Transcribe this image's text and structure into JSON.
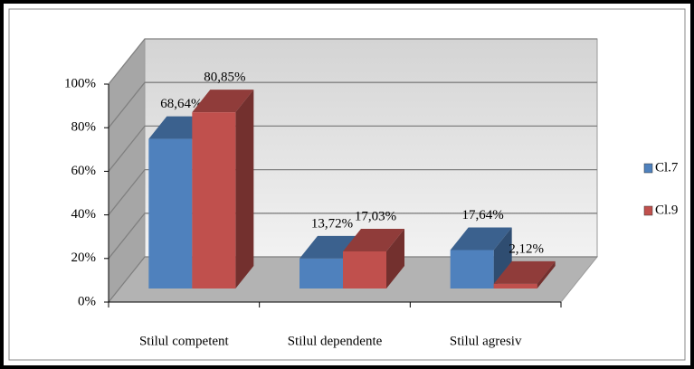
{
  "chart_data": {
    "type": "bar3d",
    "categories": [
      "Stilul competent",
      "Stilul dependente",
      "Stilul agresiv"
    ],
    "series": [
      {
        "name": "Cl.7",
        "color": "#4f81bd",
        "values": [
          68.64,
          13.72,
          17.64
        ],
        "value_labels": [
          "68,64%",
          "13,72%",
          "17,64%"
        ]
      },
      {
        "name": "Cl.9",
        "color": "#c0504d",
        "values": [
          80.85,
          17.03,
          2.12
        ],
        "value_labels": [
          "80,85%",
          "17,03%",
          "2,12%"
        ]
      }
    ],
    "ylim": [
      0,
      100
    ],
    "yticks": [
      {
        "value": 0,
        "label": "0%"
      },
      {
        "value": 20,
        "label": "20%"
      },
      {
        "value": 40,
        "label": "40%"
      },
      {
        "value": 60,
        "label": "60%"
      },
      {
        "value": 80,
        "label": "80%"
      },
      {
        "value": 100,
        "label": "100%"
      }
    ],
    "grid": true,
    "legend": "right"
  }
}
